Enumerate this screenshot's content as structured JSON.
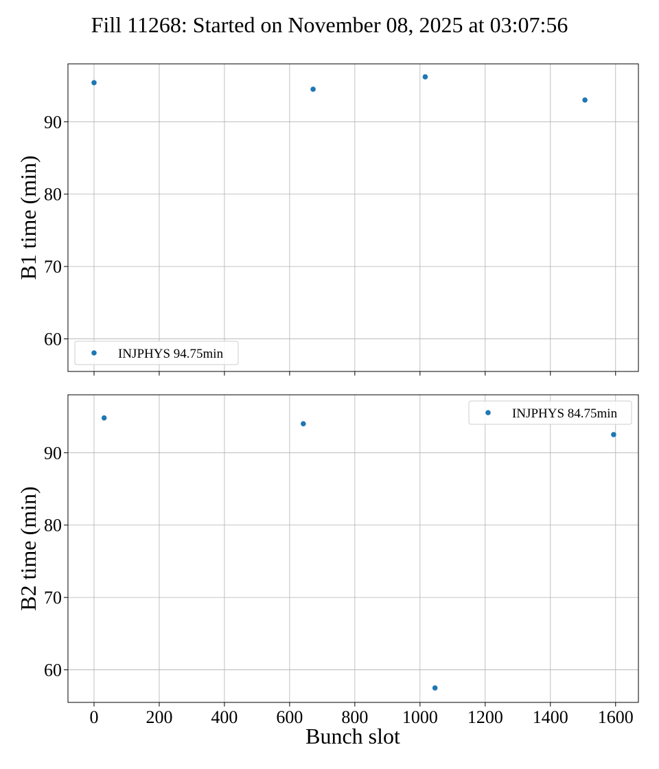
{
  "figure": {
    "title": "Fill 11268: Started on November 08, 2025 at 03:07:56",
    "xlabel": "Bunch slot"
  },
  "chart_data": [
    {
      "type": "scatter",
      "title": "",
      "xlabel": "",
      "ylabel": "B1 time (min)",
      "xlim": [
        -80,
        1670
      ],
      "ylim": [
        55.5,
        98
      ],
      "x_ticks": [
        0,
        200,
        400,
        600,
        800,
        1000,
        1200,
        1400,
        1600
      ],
      "y_ticks": [
        60,
        70,
        80,
        90
      ],
      "grid": true,
      "legend_position": "lower-left",
      "color": "#1f77b4",
      "series": [
        {
          "name": "INJPHYS 94.75min",
          "x": [
            0,
            672,
            1016,
            1506
          ],
          "y": [
            95.4,
            94.5,
            96.2,
            93.0
          ]
        }
      ]
    },
    {
      "type": "scatter",
      "title": "",
      "xlabel": "Bunch slot",
      "ylabel": "B2 time (min)",
      "xlim": [
        -80,
        1670
      ],
      "ylim": [
        55.5,
        98
      ],
      "x_ticks": [
        0,
        200,
        400,
        600,
        800,
        1000,
        1200,
        1400,
        1600
      ],
      "y_ticks": [
        60,
        70,
        80,
        90
      ],
      "grid": true,
      "legend_position": "upper-right",
      "color": "#1f77b4",
      "series": [
        {
          "name": "INJPHYS 84.75min",
          "x": [
            31,
            642,
            1046,
            1594
          ],
          "y": [
            94.8,
            94.0,
            57.5,
            92.5
          ]
        }
      ]
    }
  ]
}
